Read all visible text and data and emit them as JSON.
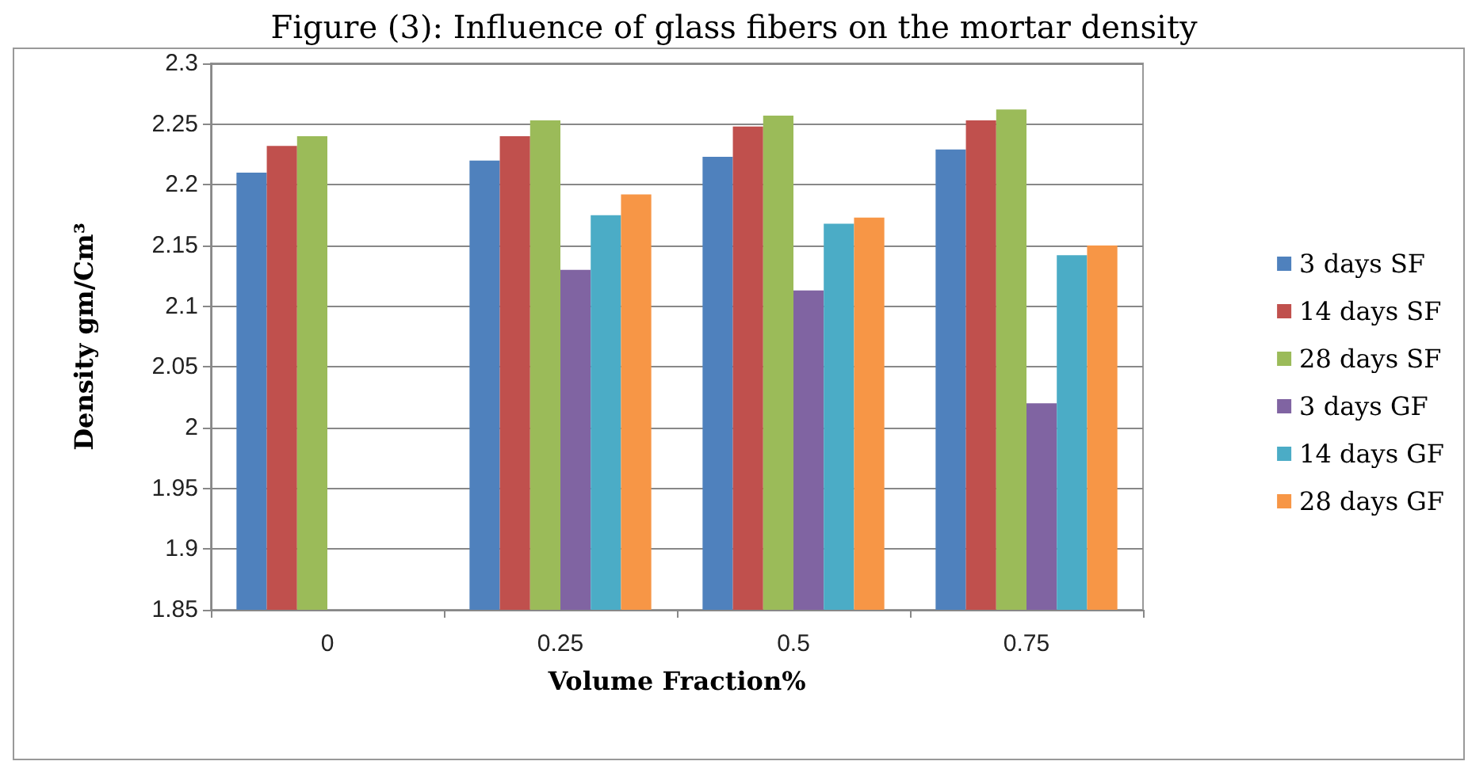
{
  "chart_data": {
    "type": "bar",
    "title": "Figure (3): Influence of glass fibers on the mortar density",
    "xlabel": "Volume Fraction%",
    "ylabel": "Density gm/Cm³",
    "categories": [
      "0",
      "0.25",
      "0.5",
      "0.75"
    ],
    "series": [
      {
        "name": "3 days SF",
        "color": "#4f81bd",
        "values": [
          2.21,
          2.22,
          2.223,
          2.229
        ]
      },
      {
        "name": "14 days SF",
        "color": "#c0504d",
        "values": [
          2.232,
          2.24,
          2.248,
          2.253
        ]
      },
      {
        "name": "28 days SF",
        "color": "#9bbb59",
        "values": [
          2.24,
          2.253,
          2.257,
          2.262
        ]
      },
      {
        "name": "3 days GF",
        "color": "#8064a2",
        "values": [
          null,
          2.13,
          2.113,
          2.02
        ]
      },
      {
        "name": "14 days GF",
        "color": "#4bacc6",
        "values": [
          null,
          2.175,
          2.168,
          2.142
        ]
      },
      {
        "name": "28 days GF",
        "color": "#f79646",
        "values": [
          null,
          2.192,
          2.173,
          2.15
        ]
      }
    ],
    "ylim": [
      1.85,
      2.3
    ],
    "yticks": [
      1.85,
      1.9,
      1.95,
      2,
      2.05,
      2.1,
      2.15,
      2.2,
      2.25,
      2.3
    ],
    "grid": "y",
    "legend": "right"
  }
}
